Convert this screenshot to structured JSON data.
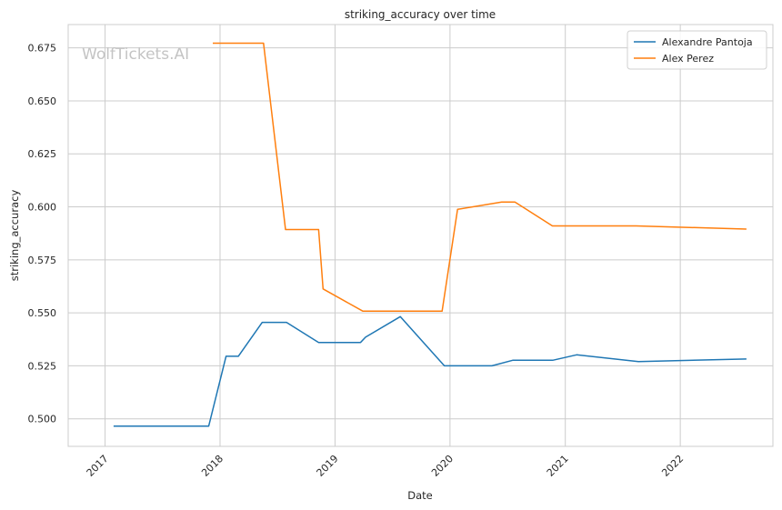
{
  "chart_data": {
    "type": "line",
    "title": "striking_accuracy over time",
    "xlabel": "Date",
    "ylabel": "striking_accuracy",
    "watermark": "WolfTickets.AI",
    "x_ticks": [
      "2017",
      "2018",
      "2019",
      "2020",
      "2021",
      "2022"
    ],
    "y_ticks": [
      "0.500",
      "0.525",
      "0.550",
      "0.575",
      "0.600",
      "0.625",
      "0.650",
      "0.675"
    ],
    "xlim": [
      "2016-09-06",
      "2022-10-22"
    ],
    "ylim": [
      0.487,
      0.686
    ],
    "grid": true,
    "legend_position": "top-right",
    "series": [
      {
        "name": "Alexandre Pantoja",
        "color": "#1f77b4",
        "points": [
          [
            "2017-01-28",
            0.4965
          ],
          [
            "2017-11-26",
            0.4965
          ],
          [
            "2018-01-20",
            0.5295
          ],
          [
            "2018-02-28",
            0.5295
          ],
          [
            "2018-05-15",
            0.5455
          ],
          [
            "2018-07-31",
            0.5455
          ],
          [
            "2018-11-10",
            0.536
          ],
          [
            "2019-03-23",
            0.536
          ],
          [
            "2019-04-08",
            0.5385
          ],
          [
            "2019-07-27",
            0.5482
          ],
          [
            "2019-12-14",
            0.525
          ],
          [
            "2020-05-13",
            0.525
          ],
          [
            "2020-07-18",
            0.5276
          ],
          [
            "2020-11-22",
            0.5276
          ],
          [
            "2021-02-06",
            0.5302
          ],
          [
            "2021-08-21",
            0.527
          ],
          [
            "2022-07-30",
            0.5282
          ]
        ]
      },
      {
        "name": "Alex Perez",
        "color": "#ff7f0e",
        "points": [
          [
            "2017-12-09",
            0.6772
          ],
          [
            "2018-05-19",
            0.6772
          ],
          [
            "2018-07-28",
            0.5893
          ],
          [
            "2018-11-10",
            0.5893
          ],
          [
            "2018-11-24",
            0.5613
          ],
          [
            "2019-03-30",
            0.5508
          ],
          [
            "2019-12-07",
            0.5508
          ],
          [
            "2020-01-25",
            0.5988
          ],
          [
            "2020-06-13",
            0.6023
          ],
          [
            "2020-07-25",
            0.6023
          ],
          [
            "2020-11-21",
            0.591
          ],
          [
            "2021-08-14",
            0.591
          ],
          [
            "2022-07-30",
            0.5895
          ]
        ]
      }
    ]
  }
}
